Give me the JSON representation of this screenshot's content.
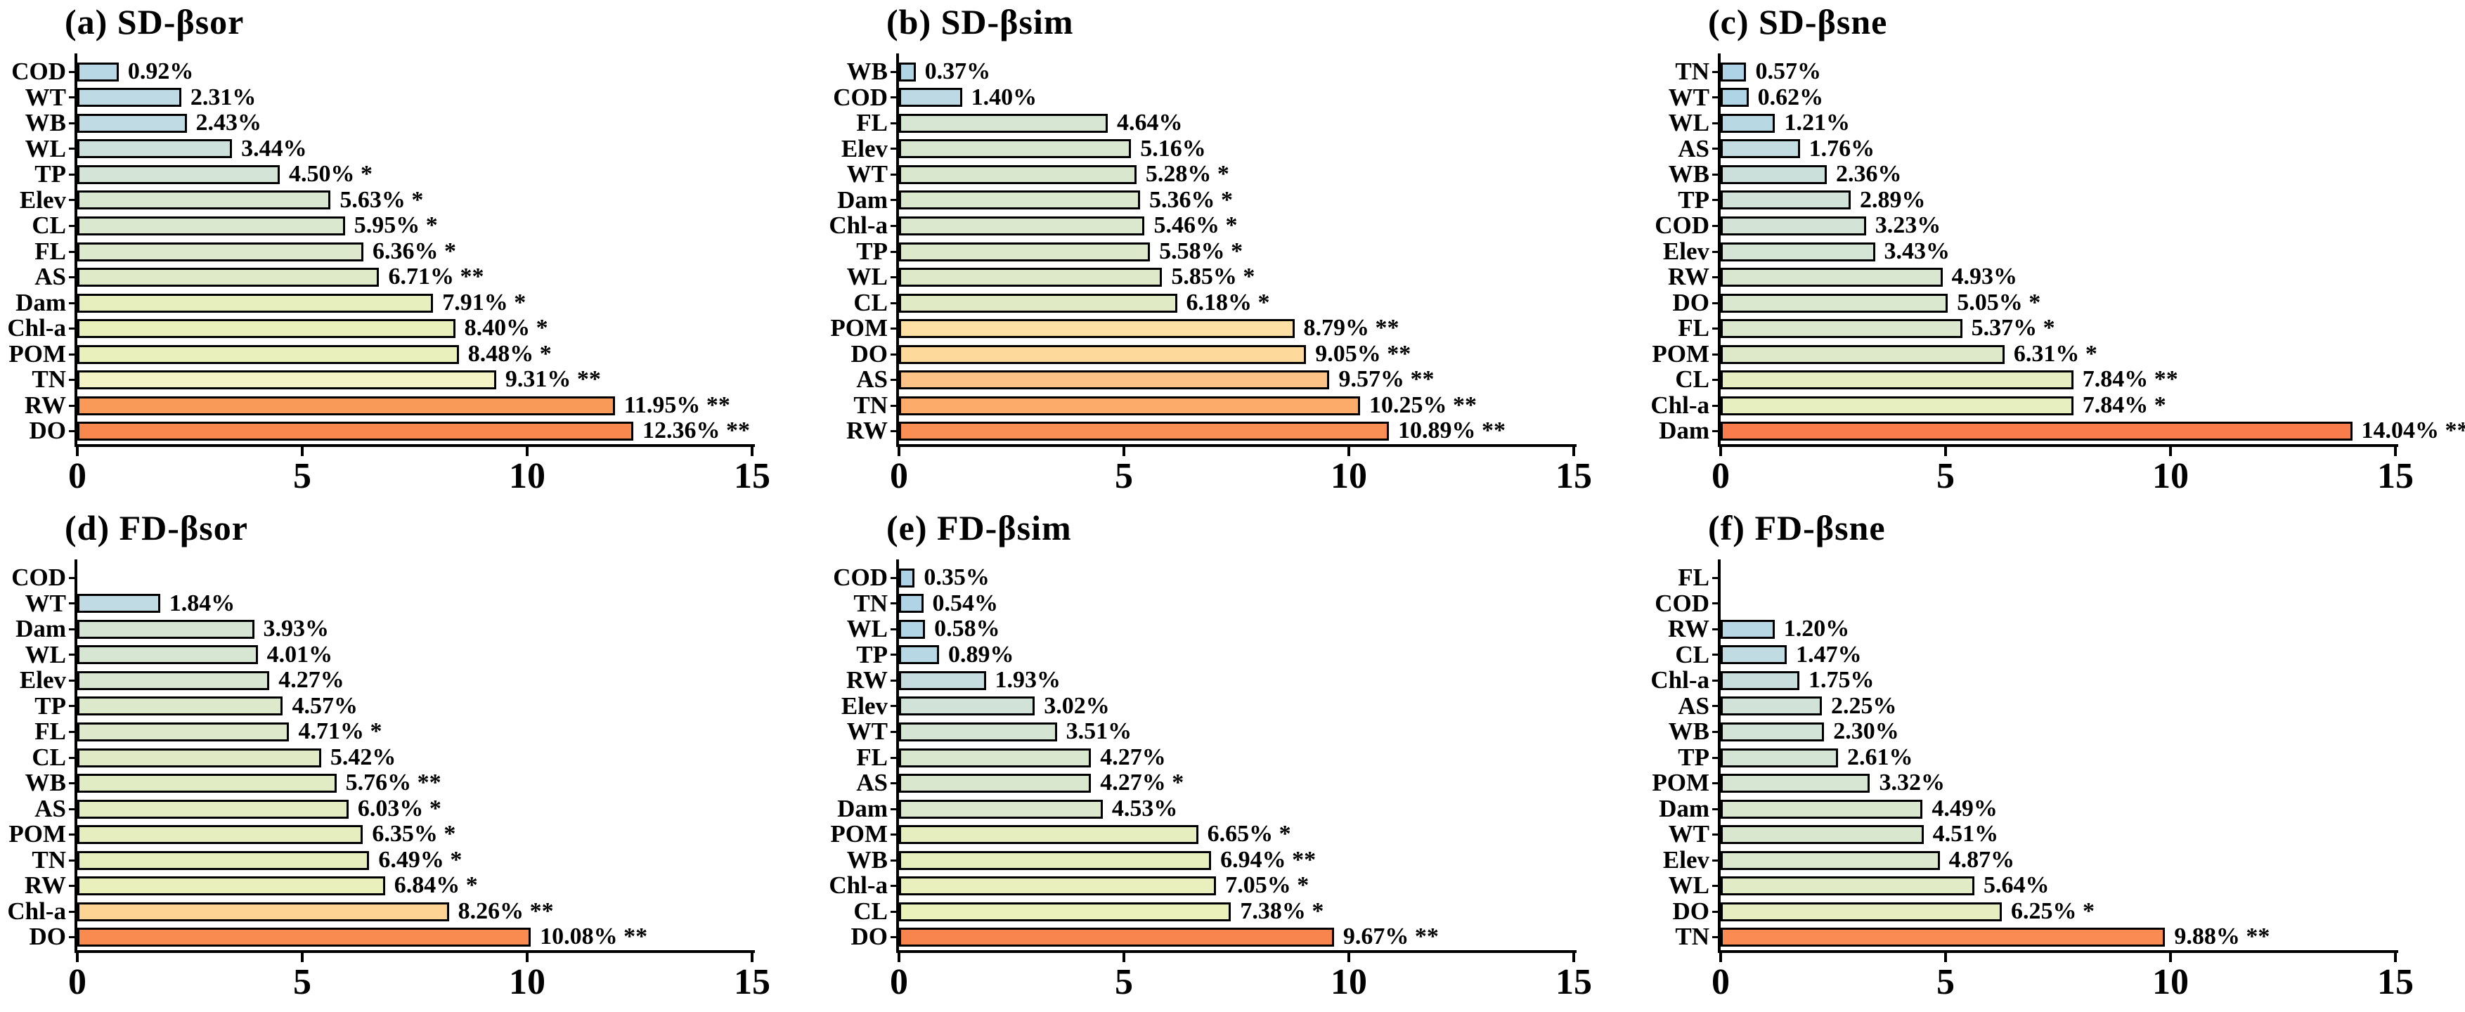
{
  "figure": {
    "background": "#ffffff",
    "text_color": "#000000",
    "axis_color": "#000000",
    "x_axis_range": [
      0,
      15
    ]
  },
  "chart_data": [
    {
      "type": "bar",
      "orientation": "horizontal",
      "title": "(a) SD-βsor",
      "xlim": [
        0,
        15
      ],
      "xticks": [
        "0",
        "5",
        "10",
        "15"
      ],
      "bars": [
        {
          "label": "COD",
          "value": 0.92,
          "text": "0.92%",
          "color": "#b9d8e6"
        },
        {
          "label": "WT",
          "value": 2.31,
          "text": "2.31%",
          "color": "#bedae4"
        },
        {
          "label": "WB",
          "value": 2.43,
          "text": "2.43%",
          "color": "#c0dbe3"
        },
        {
          "label": "WL",
          "value": 3.44,
          "text": "3.44%",
          "color": "#cde0dc"
        },
        {
          "label": "TP",
          "value": 4.5,
          "text": "4.50% *",
          "color": "#d4e4d6"
        },
        {
          "label": "Elev",
          "value": 5.63,
          "text": "5.63% *",
          "color": "#d9e7d1"
        },
        {
          "label": "CL",
          "value": 5.95,
          "text": "5.95% *",
          "color": "#dae8cf"
        },
        {
          "label": "FL",
          "value": 6.36,
          "text": "6.36% *",
          "color": "#dce9cc"
        },
        {
          "label": "AS",
          "value": 6.71,
          "text": "6.71% **",
          "color": "#dfeac9"
        },
        {
          "label": "Dam",
          "value": 7.91,
          "text": "7.91% *",
          "color": "#e7efbf"
        },
        {
          "label": "Chl-a",
          "value": 8.4,
          "text": "8.40% *",
          "color": "#e9f0bc"
        },
        {
          "label": "POM",
          "value": 8.48,
          "text": "8.48% *",
          "color": "#eaf0bb"
        },
        {
          "label": "TN",
          "value": 9.31,
          "text": "9.31% **",
          "color": "#f4f3c6"
        },
        {
          "label": "RW",
          "value": 11.95,
          "text": "11.95% **",
          "color": "#fa9a59"
        },
        {
          "label": "DO",
          "value": 12.36,
          "text": "12.36% **",
          "color": "#f9884f"
        }
      ]
    },
    {
      "type": "bar",
      "orientation": "horizontal",
      "title": "(b) SD-βsim",
      "xlim": [
        0,
        15
      ],
      "xticks": [
        "0",
        "5",
        "10",
        "15"
      ],
      "bars": [
        {
          "label": "WB",
          "value": 0.37,
          "text": "0.37%",
          "color": "#b2d5e6"
        },
        {
          "label": "COD",
          "value": 1.4,
          "text": "1.40%",
          "color": "#bcd9e4"
        },
        {
          "label": "FL",
          "value": 4.64,
          "text": "4.64%",
          "color": "#d7e6d2"
        },
        {
          "label": "Elev",
          "value": 5.16,
          "text": "5.16%",
          "color": "#d9e7d0"
        },
        {
          "label": "WT",
          "value": 5.28,
          "text": "5.28% *",
          "color": "#d9e7cf"
        },
        {
          "label": "Dam",
          "value": 5.36,
          "text": "5.36% *",
          "color": "#dae8ce"
        },
        {
          "label": "Chl-a",
          "value": 5.46,
          "text": "5.46% *",
          "color": "#dbe8cd"
        },
        {
          "label": "TP",
          "value": 5.58,
          "text": "5.58% *",
          "color": "#dce9cb"
        },
        {
          "label": "WL",
          "value": 5.85,
          "text": "5.85% *",
          "color": "#dee9c9"
        },
        {
          "label": "CL",
          "value": 6.18,
          "text": "6.18% *",
          "color": "#e0ebc6"
        },
        {
          "label": "POM",
          "value": 8.79,
          "text": "8.79% **",
          "color": "#fee0a4"
        },
        {
          "label": "DO",
          "value": 9.05,
          "text": "9.05% **",
          "color": "#fdd99b"
        },
        {
          "label": "AS",
          "value": 9.57,
          "text": "9.57% **",
          "color": "#fdc285"
        },
        {
          "label": "TN",
          "value": 10.25,
          "text": "10.25% **",
          "color": "#fcab6b"
        },
        {
          "label": "RW",
          "value": 10.89,
          "text": "10.89% **",
          "color": "#fa8f55"
        }
      ]
    },
    {
      "type": "bar",
      "orientation": "horizontal",
      "title": "(c) SD-βsne",
      "xlim": [
        0,
        15
      ],
      "xticks": [
        "0",
        "5",
        "10",
        "15"
      ],
      "bars": [
        {
          "label": "TN",
          "value": 0.57,
          "text": "0.57%",
          "color": "#aed3e6"
        },
        {
          "label": "WT",
          "value": 0.62,
          "text": "0.62%",
          "color": "#afd4e6"
        },
        {
          "label": "WL",
          "value": 1.21,
          "text": "1.21%",
          "color": "#b8d8e4"
        },
        {
          "label": "AS",
          "value": 1.76,
          "text": "1.76%",
          "color": "#c2dce1"
        },
        {
          "label": "WB",
          "value": 2.36,
          "text": "2.36%",
          "color": "#cce0db"
        },
        {
          "label": "TP",
          "value": 2.89,
          "text": "2.89%",
          "color": "#d1e3d8"
        },
        {
          "label": "COD",
          "value": 3.23,
          "text": "3.23%",
          "color": "#d3e4d6"
        },
        {
          "label": "Elev",
          "value": 3.43,
          "text": "3.43%",
          "color": "#d4e5d5"
        },
        {
          "label": "RW",
          "value": 4.93,
          "text": "4.93%",
          "color": "#d9e7d0"
        },
        {
          "label": "DO",
          "value": 5.05,
          "text": "5.05% *",
          "color": "#dae8cf"
        },
        {
          "label": "FL",
          "value": 5.37,
          "text": "5.37% *",
          "color": "#dbe8cd"
        },
        {
          "label": "POM",
          "value": 6.31,
          "text": "6.31% *",
          "color": "#dee9c9"
        },
        {
          "label": "CL",
          "value": 7.84,
          "text": "7.84% **",
          "color": "#e6eec1"
        },
        {
          "label": "Chl-a",
          "value": 7.84,
          "text": "7.84% *",
          "color": "#e7efc0"
        },
        {
          "label": "Dam",
          "value": 14.04,
          "text": "14.04% **",
          "color": "#f97c4d"
        }
      ]
    },
    {
      "type": "bar",
      "orientation": "horizontal",
      "title": "(d) FD-βsor",
      "xlim": [
        0,
        15
      ],
      "xticks": [
        "0",
        "5",
        "10",
        "15"
      ],
      "bars": [
        {
          "label": "COD",
          "value": 0,
          "text": "",
          "color": "#ffffff"
        },
        {
          "label": "WT",
          "value": 1.84,
          "text": "1.84%",
          "color": "#c0dbe3"
        },
        {
          "label": "Dam",
          "value": 3.93,
          "text": "3.93%",
          "color": "#d6e5d3"
        },
        {
          "label": "WL",
          "value": 4.01,
          "text": "4.01%",
          "color": "#d7e6d2"
        },
        {
          "label": "Elev",
          "value": 4.27,
          "text": "4.27%",
          "color": "#d8e6d1"
        },
        {
          "label": "TP",
          "value": 4.57,
          "text": "4.57%",
          "color": "#dce9cb"
        },
        {
          "label": "FL",
          "value": 4.71,
          "text": "4.71% *",
          "color": "#dde9ca"
        },
        {
          "label": "CL",
          "value": 5.42,
          "text": "5.42%",
          "color": "#e0ebc6"
        },
        {
          "label": "WB",
          "value": 5.76,
          "text": "5.76% **",
          "color": "#e2ecc4"
        },
        {
          "label": "AS",
          "value": 6.03,
          "text": "6.03% *",
          "color": "#e4edc2"
        },
        {
          "label": "POM",
          "value": 6.35,
          "text": "6.35% *",
          "color": "#e6eec0"
        },
        {
          "label": "TN",
          "value": 6.49,
          "text": "6.49% *",
          "color": "#e7efbf"
        },
        {
          "label": "RW",
          "value": 6.84,
          "text": "6.84% *",
          "color": "#eaf0bb"
        },
        {
          "label": "Chl-a",
          "value": 8.26,
          "text": "8.26% **",
          "color": "#fdd494"
        },
        {
          "label": "DO",
          "value": 10.08,
          "text": "10.08% **",
          "color": "#f98b50"
        }
      ]
    },
    {
      "type": "bar",
      "orientation": "horizontal",
      "title": "(e) FD-βsim",
      "xlim": [
        0,
        15
      ],
      "xticks": [
        "0",
        "5",
        "10",
        "15"
      ],
      "bars": [
        {
          "label": "COD",
          "value": 0.35,
          "text": "0.35%",
          "color": "#add2e7"
        },
        {
          "label": "TN",
          "value": 0.54,
          "text": "0.54%",
          "color": "#b0d4e5"
        },
        {
          "label": "WL",
          "value": 0.58,
          "text": "0.58%",
          "color": "#b1d5e5"
        },
        {
          "label": "TP",
          "value": 0.89,
          "text": "0.89%",
          "color": "#b7d7e4"
        },
        {
          "label": "RW",
          "value": 1.93,
          "text": "1.93%",
          "color": "#c5dddf"
        },
        {
          "label": "Elev",
          "value": 3.02,
          "text": "3.02%",
          "color": "#d1e3d8"
        },
        {
          "label": "WT",
          "value": 3.51,
          "text": "3.51%",
          "color": "#d5e5d4"
        },
        {
          "label": "FL",
          "value": 4.27,
          "text": "4.27%",
          "color": "#d9e7cf"
        },
        {
          "label": "AS",
          "value": 4.27,
          "text": "4.27% *",
          "color": "#d9e7cf"
        },
        {
          "label": "Dam",
          "value": 4.53,
          "text": "4.53%",
          "color": "#dbe8cd"
        },
        {
          "label": "POM",
          "value": 6.65,
          "text": "6.65% *",
          "color": "#e6eec0"
        },
        {
          "label": "WB",
          "value": 6.94,
          "text": "6.94% **",
          "color": "#e8efbe"
        },
        {
          "label": "Chl-a",
          "value": 7.05,
          "text": "7.05% *",
          "color": "#e9f0bd"
        },
        {
          "label": "CL",
          "value": 7.38,
          "text": "7.38% *",
          "color": "#ebf1ba"
        },
        {
          "label": "DO",
          "value": 9.67,
          "text": "9.67% **",
          "color": "#f9854e"
        }
      ]
    },
    {
      "type": "bar",
      "orientation": "horizontal",
      "title": "(f) FD-βsne",
      "xlim": [
        0,
        15
      ],
      "xticks": [
        "0",
        "5",
        "10",
        "15"
      ],
      "bars": [
        {
          "label": "FL",
          "value": 0,
          "text": "",
          "color": "#ffffff"
        },
        {
          "label": "COD",
          "value": 0,
          "text": "",
          "color": "#ffffff"
        },
        {
          "label": "RW",
          "value": 1.2,
          "text": "1.20%",
          "color": "#b7d7e4"
        },
        {
          "label": "CL",
          "value": 1.47,
          "text": "1.47%",
          "color": "#c0dbe2"
        },
        {
          "label": "Chl-a",
          "value": 1.75,
          "text": "1.75%",
          "color": "#c8dedd"
        },
        {
          "label": "AS",
          "value": 2.25,
          "text": "2.25%",
          "color": "#d1e3d8"
        },
        {
          "label": "WB",
          "value": 2.3,
          "text": "2.30%",
          "color": "#d2e4d7"
        },
        {
          "label": "TP",
          "value": 2.61,
          "text": "2.61%",
          "color": "#d4e5d5"
        },
        {
          "label": "POM",
          "value": 3.32,
          "text": "3.32%",
          "color": "#d7e6d2"
        },
        {
          "label": "Dam",
          "value": 4.49,
          "text": "4.49%",
          "color": "#d9e7cf"
        },
        {
          "label": "WT",
          "value": 4.51,
          "text": "4.51%",
          "color": "#d9e7cf"
        },
        {
          "label": "Elev",
          "value": 4.87,
          "text": "4.87%",
          "color": "#dbe8cd"
        },
        {
          "label": "WL",
          "value": 5.64,
          "text": "5.64%",
          "color": "#e1ebc5"
        },
        {
          "label": "DO",
          "value": 6.25,
          "text": "6.25% *",
          "color": "#e5edc1"
        },
        {
          "label": "TN",
          "value": 9.88,
          "text": "9.88% **",
          "color": "#fa8b52"
        }
      ]
    }
  ]
}
